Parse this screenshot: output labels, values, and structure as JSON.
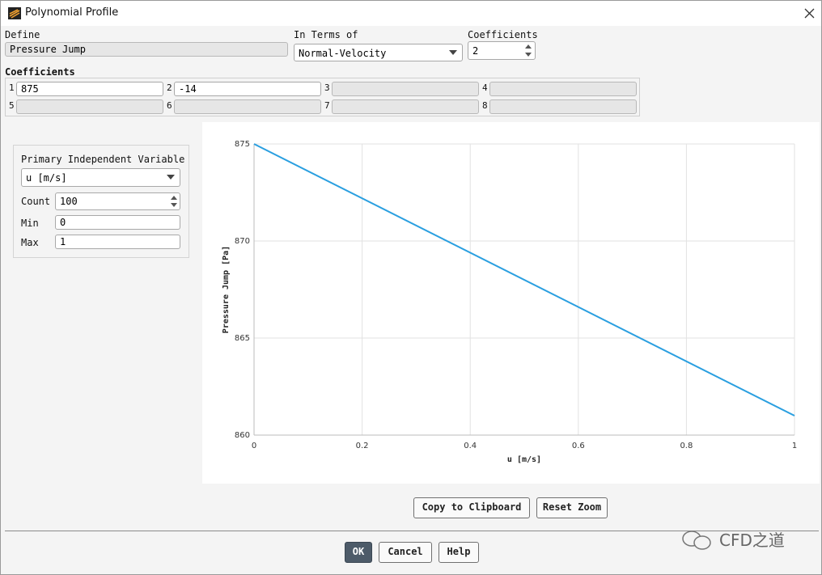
{
  "window": {
    "title": "Polynomial Profile"
  },
  "define": {
    "label": "Define",
    "value": "Pressure Jump"
  },
  "in_terms_of": {
    "label": "In Terms of",
    "value": "Normal-Velocity"
  },
  "coefficient_count": {
    "label": "Coefficients",
    "value": "2"
  },
  "coefficients": {
    "label": "Coefficients",
    "indices": [
      "1",
      "2",
      "3",
      "4",
      "5",
      "6",
      "7",
      "8"
    ],
    "values": [
      "875",
      "-14"
    ]
  },
  "variable_panel": {
    "title": "Primary Independent Variable",
    "variable": "u [m/s]",
    "count_label": "Count",
    "count": "100",
    "min_label": "Min",
    "min": "0",
    "max_label": "Max",
    "max": "1"
  },
  "chart_data": {
    "type": "line",
    "xlabel": "u [m/s]",
    "ylabel": "Pressure Jump [Pa]",
    "x": [
      0,
      1
    ],
    "values": [
      875,
      861
    ],
    "color": "#2a9fe0",
    "xlim": [
      0,
      1
    ],
    "ylim": [
      860,
      875
    ],
    "xticks": [
      0,
      0.2,
      0.4,
      0.6,
      0.8,
      1
    ],
    "yticks": [
      860,
      865,
      870,
      875
    ],
    "grid": true
  },
  "buttons": {
    "copy": "Copy to Clipboard",
    "reset": "Reset Zoom",
    "ok": "OK",
    "cancel": "Cancel",
    "help": "Help"
  },
  "watermark": "CFD之道"
}
